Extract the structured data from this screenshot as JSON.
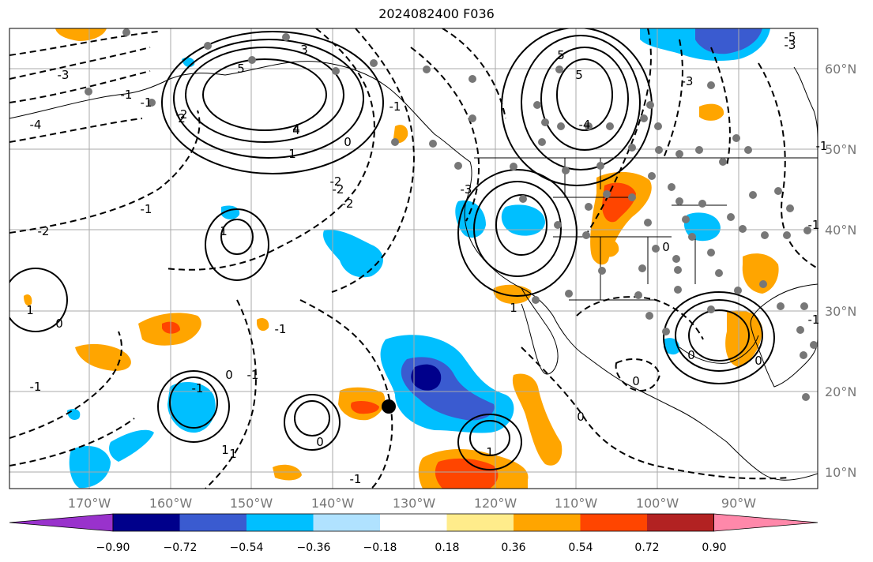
{
  "title": "2024082400 F036",
  "map": {
    "lon_labels": [
      "170°W",
      "160°W",
      "150°W",
      "140°W",
      "130°W",
      "120°W",
      "110°W",
      "100°W",
      "90°W"
    ],
    "lat_labels": [
      "60°N",
      "50°N",
      "40°N",
      "30°N",
      "20°N",
      "10°N"
    ],
    "tick_color": "#777777"
  },
  "colorbar": {
    "labels": [
      "−0.90",
      "−0.72",
      "−0.54",
      "−0.36",
      "−0.18",
      "0.18",
      "0.36",
      "0.54",
      "0.72",
      "0.90"
    ],
    "colors": [
      "#9932cc",
      "#00008b",
      "#3a5bd0",
      "#00bfff",
      "#b0e2ff",
      "#ffffff",
      "#ffec8b",
      "#ffa500",
      "#ff4500",
      "#b22222",
      "#ff88aa"
    ]
  },
  "contour_labels": [
    "3",
    "4",
    "-4",
    "5",
    "5",
    "-5",
    "5",
    "-4",
    "-3",
    "-2",
    "-2",
    "0",
    "-1",
    "-1",
    "-1",
    "-2",
    "2",
    "4",
    "1",
    "-3",
    "-3",
    "-2",
    "-2",
    "-1",
    "1",
    "-1",
    "1",
    "-1",
    "0",
    "0",
    "1",
    "1",
    "0",
    "1",
    "-1",
    "-1",
    "-1",
    "0",
    "-1",
    "0",
    "0",
    "0",
    "1",
    "-3",
    "-1",
    "0",
    "-1"
  ],
  "marker": "storm-center"
}
